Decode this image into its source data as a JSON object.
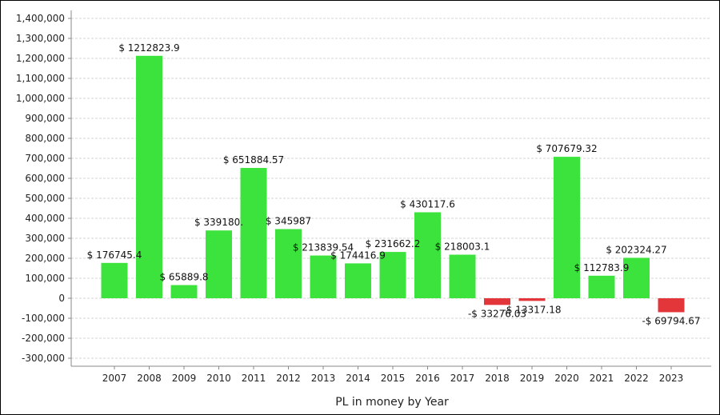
{
  "chart_data": {
    "type": "bar",
    "title": "",
    "xlabel": "PL in money by Year",
    "ylabel": "",
    "categories": [
      "2007",
      "2008",
      "2009",
      "2010",
      "2011",
      "2012",
      "2013",
      "2014",
      "2015",
      "2016",
      "2017",
      "2018",
      "2019",
      "2020",
      "2021",
      "2022",
      "2023"
    ],
    "values": [
      176745.4,
      1212823.9,
      65889.8,
      339180,
      651884.57,
      345987,
      213839.54,
      174416.9,
      231662.2,
      430117.6,
      218003.1,
      -33276.03,
      -13317.18,
      707679.32,
      112783.9,
      202324.27,
      -69794.67
    ],
    "data_labels": [
      "$ 176745.4",
      "$ 1212823.9",
      "$ 65889.8",
      "$ 339180.",
      "$ 651884.57",
      "$ 345987",
      "$ 213839.54",
      "$ 174416.9",
      "$ 231662.2",
      "$ 430117.6",
      "$ 218003.1",
      "-$ 33276.03",
      "-$ 13317.18",
      "$ 707679.32",
      "$ 112783.9",
      "$ 202324.27",
      "-$ 69794.67"
    ],
    "yticks": [
      "-300,000",
      "-200,000",
      "-100,000",
      "0",
      "100,000",
      "200,000",
      "300,000",
      "400,000",
      "500,000",
      "600,000",
      "700,000",
      "800,000",
      "900,000",
      "1,000,000",
      "1,100,000",
      "1,200,000",
      "1,300,000",
      "1,400,000"
    ],
    "ylim": [
      -340000,
      1440000
    ],
    "grid": true,
    "legend": "none",
    "colors": {
      "positive": "#3de33d",
      "negative": "#e3363b",
      "grid": "#d6d6d6",
      "axis": "#888888"
    }
  }
}
